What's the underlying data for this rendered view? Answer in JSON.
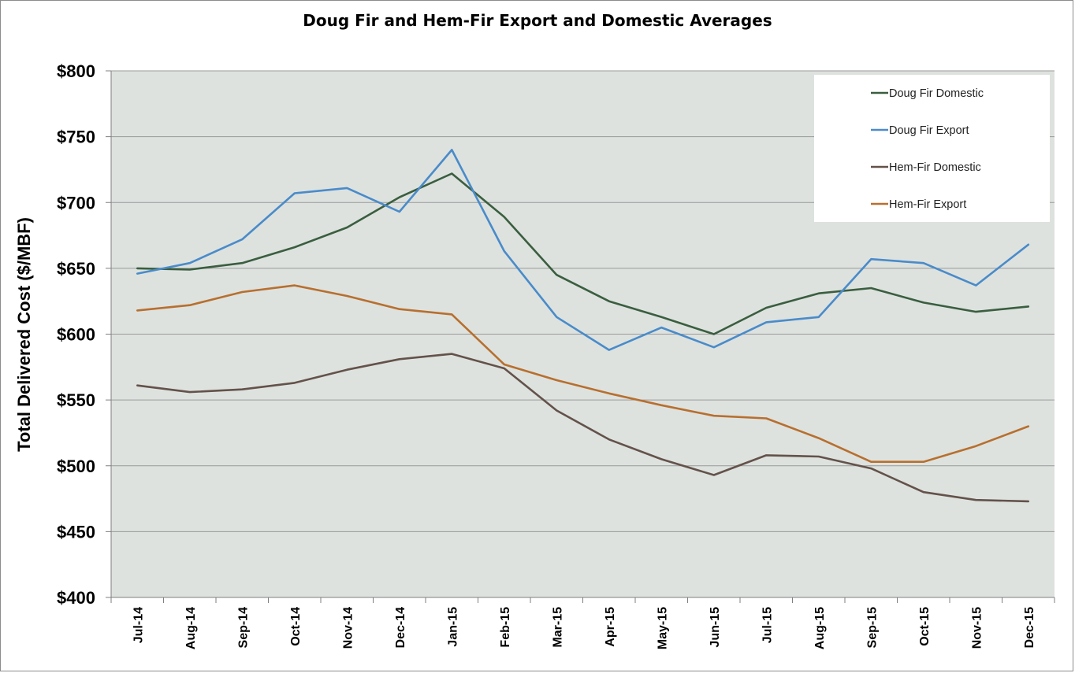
{
  "chart_data": {
    "type": "line",
    "title": "Doug Fir and Hem-Fir Export and Domestic Averages",
    "xlabel": "",
    "ylabel": "Total Delivered Cost ($/MBF)",
    "ylim": [
      400,
      800
    ],
    "yticks": [
      400,
      450,
      500,
      550,
      600,
      650,
      700,
      750,
      800
    ],
    "ytick_labels": [
      "$400",
      "$450",
      "$500",
      "$550",
      "$600",
      "$650",
      "$700",
      "$750",
      "$800"
    ],
    "grid": "horizontal",
    "legend_position": "top-right",
    "plot_background": "#dde2df",
    "categories": [
      "Jul-14",
      "Aug-14",
      "Sep-14",
      "Oct-14",
      "Nov-14",
      "Dec-14",
      "Jan-15",
      "Feb-15",
      "Mar-15",
      "Apr-15",
      "May-15",
      "Jun-15",
      "Jul-15",
      "Aug-15",
      "Sep-15",
      "Oct-15",
      "Nov-15",
      "Dec-15"
    ],
    "series": [
      {
        "name": "Doug Fir Domestic",
        "color": "#3a5e3f",
        "values": [
          650,
          649,
          654,
          666,
          681,
          704,
          722,
          689,
          645,
          625,
          613,
          600,
          620,
          631,
          635,
          624,
          617,
          621
        ]
      },
      {
        "name": "Doug Fir Export",
        "color": "#4a8bc9",
        "values": [
          646,
          654,
          672,
          707,
          711,
          693,
          740,
          663,
          613,
          588,
          605,
          590,
          609,
          613,
          657,
          654,
          637,
          668
        ]
      },
      {
        "name": "Hem-Fir Domestic",
        "color": "#64524a",
        "values": [
          561,
          556,
          558,
          563,
          573,
          581,
          585,
          574,
          542,
          520,
          505,
          493,
          508,
          507,
          498,
          480,
          474,
          473
        ]
      },
      {
        "name": "Hem-Fir  Export",
        "color": "#b86f2e",
        "values": [
          618,
          622,
          632,
          637,
          629,
          619,
          615,
          577,
          565,
          555,
          546,
          538,
          536,
          521,
          503,
          503,
          515,
          530
        ]
      }
    ]
  }
}
